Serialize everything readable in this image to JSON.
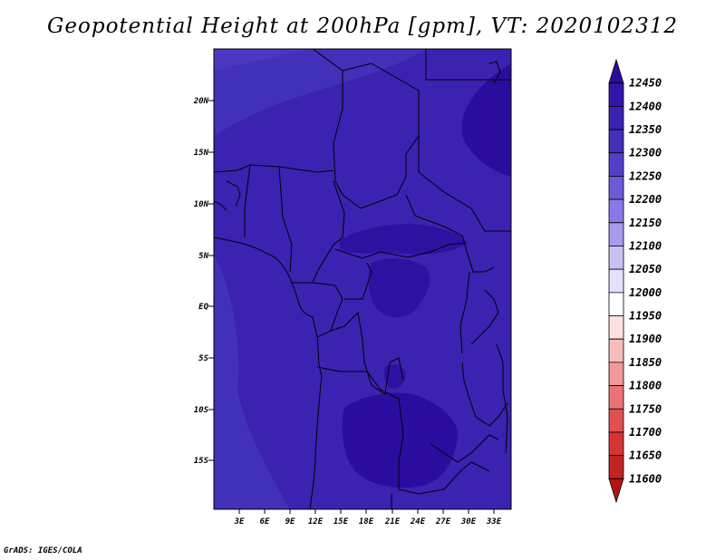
{
  "title": "Geopotential Height at 200hPa [gpm], VT: 2020102312",
  "credit": "GrADS: IGES/COLA",
  "map": {
    "lon_range": [
      0,
      35
    ],
    "lat_range": [
      -20.5,
      24.5
    ],
    "lat_ticks": [
      {
        "value": 20,
        "label": "20N"
      },
      {
        "value": 15,
        "label": "15N"
      },
      {
        "value": 10,
        "label": "10N"
      },
      {
        "value": 5,
        "label": "5N"
      },
      {
        "value": 0,
        "label": "EQ"
      },
      {
        "value": -5,
        "label": "5S"
      },
      {
        "value": -10,
        "label": "10S"
      },
      {
        "value": -15,
        "label": "15S"
      }
    ],
    "lon_ticks": [
      {
        "value": 3,
        "label": "3E"
      },
      {
        "value": 6,
        "label": "6E"
      },
      {
        "value": 9,
        "label": "9E"
      },
      {
        "value": 12,
        "label": "12E"
      },
      {
        "value": 15,
        "label": "15E"
      },
      {
        "value": 18,
        "label": "18E"
      },
      {
        "value": 21,
        "label": "21E"
      },
      {
        "value": 24,
        "label": "24E"
      },
      {
        "value": 27,
        "label": "27E"
      },
      {
        "value": 30,
        "label": "30E"
      },
      {
        "value": 33,
        "label": "33E"
      }
    ]
  },
  "colorbar": {
    "levels": [
      "12450",
      "12400",
      "12350",
      "12300",
      "12250",
      "12200",
      "12150",
      "12100",
      "12050",
      "12000",
      "11950",
      "11900",
      "11850",
      "11800",
      "11750",
      "11700",
      "11650",
      "11600"
    ],
    "colors": [
      "#2a0d9e",
      "#3316a9",
      "#3b22b0",
      "#4130b8",
      "#5040c8",
      "#6a5ad8",
      "#8878e8",
      "#a99af0",
      "#c9c0f4",
      "#e6e0fa",
      "#ffffff",
      "#fde0e0",
      "#f9bcbc",
      "#f29a9a",
      "#ea7474",
      "#e05050",
      "#d53535",
      "#c42222",
      "#b01515"
    ]
  }
}
